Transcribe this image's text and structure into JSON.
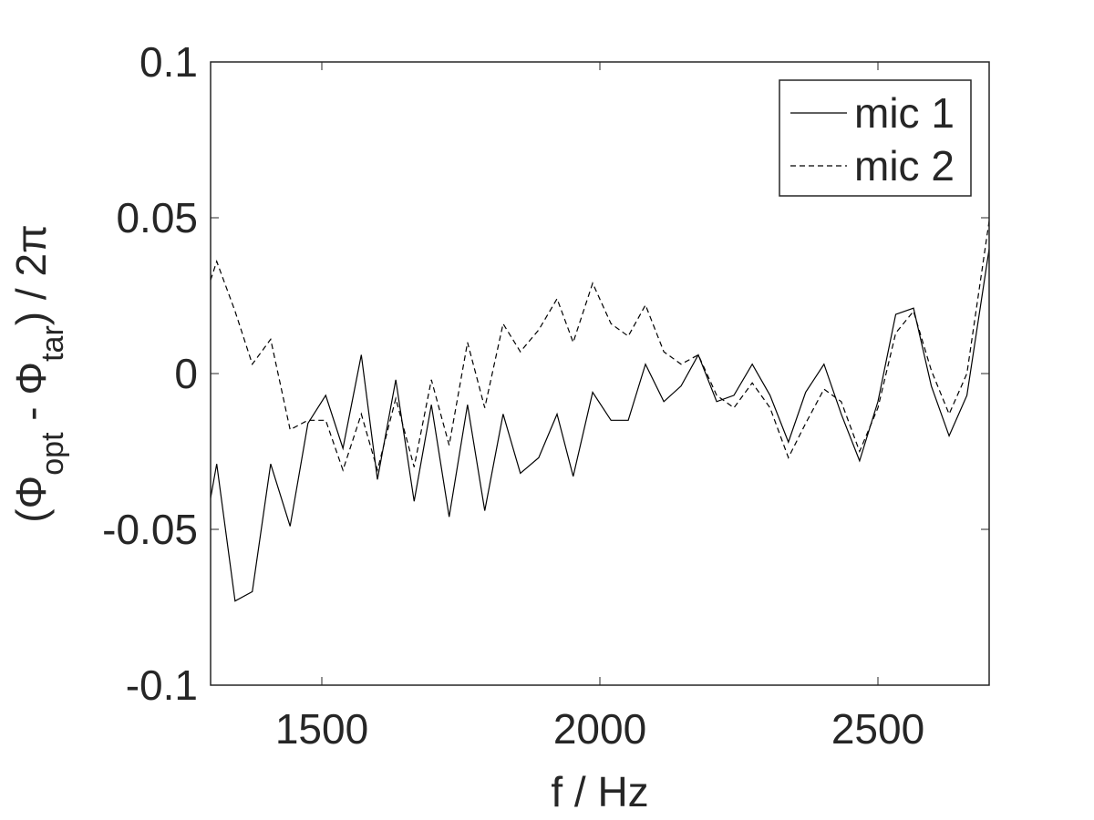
{
  "chart_data": {
    "type": "line",
    "xlabel": "f / Hz",
    "ylabel": [
      "(Φ",
      "opt",
      " - Φ",
      "tar",
      ") / 2π"
    ],
    "x": [
      1300,
      1311,
      1344,
      1375,
      1408,
      1443,
      1475,
      1507,
      1538,
      1571,
      1600,
      1633,
      1666,
      1697,
      1729,
      1762,
      1793,
      1826,
      1857,
      1890,
      1923,
      1952,
      1987,
      2020,
      2051,
      2082,
      2115,
      2146,
      2177,
      2210,
      2241,
      2274,
      2306,
      2339,
      2370,
      2403,
      2434,
      2467,
      2500,
      2532,
      2564,
      2596,
      2628,
      2660,
      2700
    ],
    "series": [
      {
        "name": "mic 1",
        "color": "#000000",
        "linestyle": "solid",
        "values": [
          -0.04,
          -0.029,
          -0.073,
          -0.07,
          -0.029,
          -0.049,
          -0.016,
          -0.007,
          -0.024,
          0.006,
          -0.034,
          -0.002,
          -0.041,
          -0.01,
          -0.046,
          -0.01,
          -0.044,
          -0.013,
          -0.032,
          -0.027,
          -0.013,
          -0.033,
          -0.006,
          -0.015,
          -0.015,
          0.003,
          -0.009,
          -0.004,
          0.006,
          -0.009,
          -0.007,
          0.003,
          -0.007,
          -0.022,
          -0.006,
          0.003,
          -0.013,
          -0.028,
          -0.009,
          0.019,
          0.021,
          -0.004,
          -0.02,
          -0.007,
          0.04
        ]
      },
      {
        "name": "mic 2",
        "color": "#000000",
        "linestyle": "dashed",
        "values": [
          0.03,
          0.036,
          0.02,
          0.003,
          0.011,
          -0.018,
          -0.015,
          -0.015,
          -0.031,
          -0.013,
          -0.031,
          -0.008,
          -0.03,
          -0.002,
          -0.023,
          0.01,
          -0.011,
          0.016,
          0.007,
          0.014,
          0.024,
          0.01,
          0.029,
          0.016,
          0.012,
          0.022,
          0.007,
          0.003,
          0.006,
          -0.007,
          -0.011,
          -0.003,
          -0.011,
          -0.027,
          -0.016,
          -0.005,
          -0.009,
          -0.025,
          -0.011,
          0.013,
          0.02,
          0.001,
          -0.013,
          0.0,
          0.049
        ]
      }
    ],
    "xlim": [
      1300,
      2700
    ],
    "xticks": [
      1500,
      2000,
      2500
    ],
    "ylim": [
      -0.1,
      0.1
    ],
    "yticks": [
      -0.1,
      -0.05,
      0,
      0.05,
      0.1
    ],
    "grid": false,
    "legend": "upper right"
  }
}
